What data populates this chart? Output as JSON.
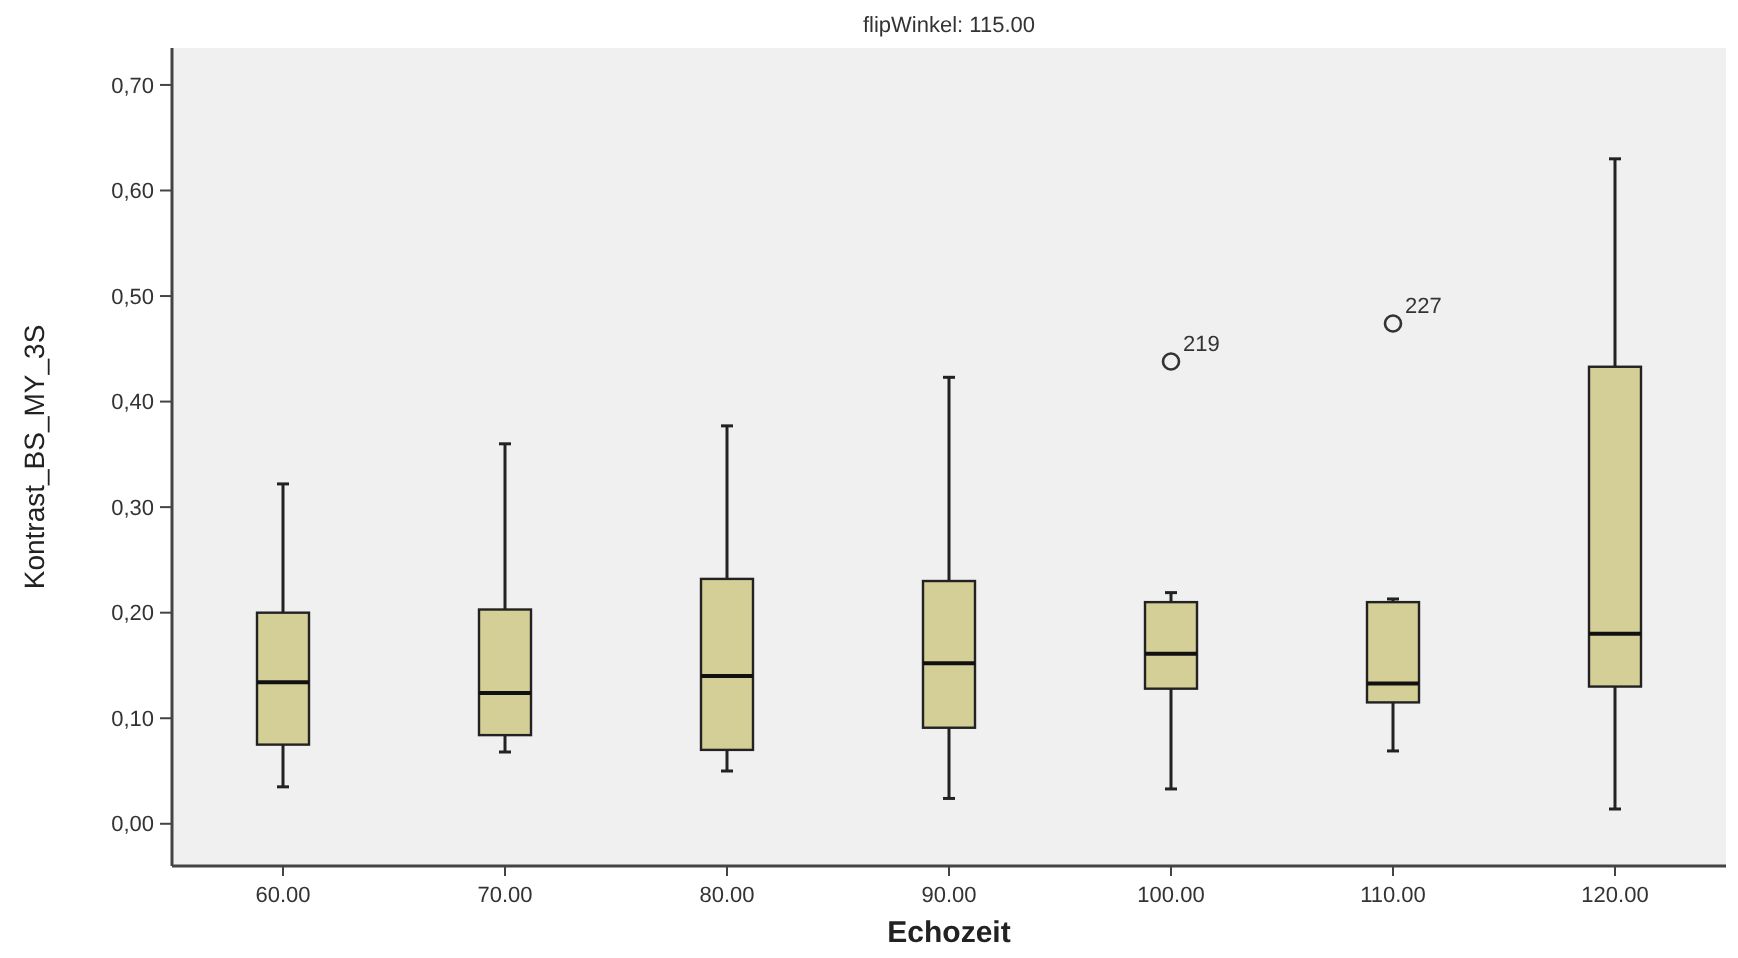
{
  "chart_data": {
    "type": "box",
    "title": "flipWinkel: 115.00",
    "xlabel": "Echozeit",
    "ylabel": "Kontrast_BS_MY_3S",
    "categories": [
      "60.00",
      "70.00",
      "80.00",
      "90.00",
      "100.00",
      "110.00",
      "120.00"
    ],
    "color": "#d4cf96",
    "grid": false,
    "boxes": [
      {
        "low": 0.035,
        "q1": 0.075,
        "median": 0.134,
        "q3": 0.2,
        "high": 0.322
      },
      {
        "low": 0.068,
        "q1": 0.084,
        "median": 0.124,
        "q3": 0.203,
        "high": 0.36
      },
      {
        "low": 0.05,
        "q1": 0.07,
        "median": 0.14,
        "q3": 0.232,
        "high": 0.377
      },
      {
        "low": 0.024,
        "q1": 0.091,
        "median": 0.152,
        "q3": 0.23,
        "high": 0.423
      },
      {
        "low": 0.033,
        "q1": 0.128,
        "median": 0.161,
        "q3": 0.21,
        "high": 0.219,
        "outliers": [
          0.438
        ]
      },
      {
        "low": 0.069,
        "q1": 0.115,
        "median": 0.133,
        "q3": 0.21,
        "high": 0.213,
        "outliers": [
          0.474
        ]
      },
      {
        "low": 0.014,
        "q1": 0.13,
        "median": 0.18,
        "q3": 0.433,
        "high": 0.63
      }
    ],
    "annotations": [
      "219",
      "227"
    ],
    "ylim": [
      -0.04,
      0.735
    ],
    "yticks": [
      {
        "value": 0,
        "label": "0,00"
      },
      {
        "value": 0.1,
        "label": "0,10"
      },
      {
        "value": 0.2,
        "label": "0,20"
      },
      {
        "value": 0.3,
        "label": "0,30"
      },
      {
        "value": 0.4,
        "label": "0,40"
      },
      {
        "value": 0.5,
        "label": "0,50"
      },
      {
        "value": 0.6,
        "label": "0,60"
      },
      {
        "value": 0.7,
        "label": "0,70"
      }
    ]
  }
}
